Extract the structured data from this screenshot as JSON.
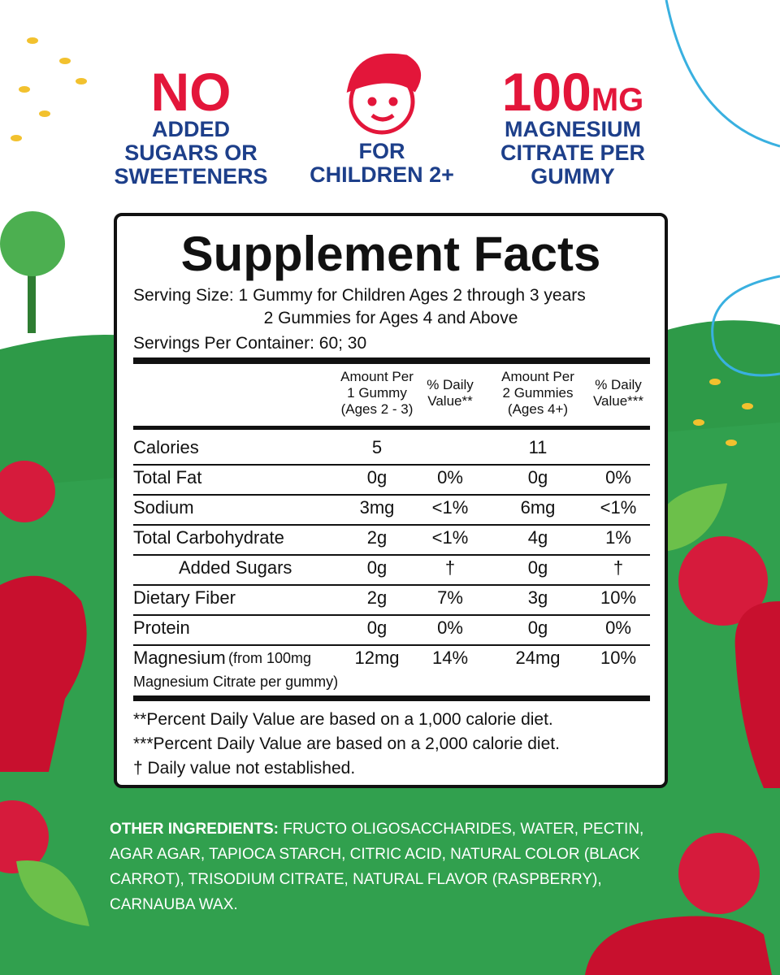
{
  "badges": [
    {
      "big": "NO",
      "lines": [
        "ADDED",
        "SUGARS OR",
        "SWEETENERS"
      ]
    },
    {
      "lines": [
        "FOR",
        "CHILDREN 2+"
      ]
    },
    {
      "big": "100",
      "unit": "MG",
      "lines": [
        "MAGNESIUM",
        "CITRATE PER",
        "GUMMY"
      ]
    }
  ],
  "facts": {
    "title": "Supplement Facts",
    "serving": [
      "Serving Size: 1 Gummy for Children Ages 2 through 3 years",
      "2 Gummies for Ages 4 and Above"
    ],
    "servings_per_container": "Servings Per Container: 60; 30",
    "columns": [
      [
        "Amount Per",
        "1 Gummy",
        "(Ages 2 - 3)"
      ],
      [
        "% Daily",
        "Value**"
      ],
      [
        "Amount Per",
        "2 Gummies",
        "(Ages 4+)"
      ],
      [
        "% Daily",
        "Value***"
      ]
    ],
    "rows": [
      {
        "label": "Calories",
        "values": [
          "5",
          null,
          "11",
          null
        ]
      },
      {
        "label": "Total Fat",
        "values": [
          "0g",
          "0%",
          "0g",
          "0%"
        ]
      },
      {
        "label": "Sodium",
        "values": [
          "3mg",
          "<1%",
          "6mg",
          "<1%"
        ]
      },
      {
        "label": "Total Carbohydrate",
        "values": [
          "2g",
          "<1%",
          "4g",
          "1%"
        ]
      },
      {
        "label": "Added Sugars",
        "indent": true,
        "values": [
          "0g",
          "†",
          "0g",
          "†"
        ]
      },
      {
        "label": "Dietary Fiber",
        "values": [
          "2g",
          "7%",
          "3g",
          "10%"
        ]
      },
      {
        "label": "Protein",
        "values": [
          "0g",
          "0%",
          "0g",
          "0%"
        ]
      },
      {
        "label": "Magnesium",
        "note": [
          "(from 100mg",
          "Magnesium Citrate per gummy)"
        ],
        "values": [
          "12mg",
          "14%",
          "24mg",
          "10%"
        ]
      }
    ],
    "footnotes": [
      "**Percent Daily Value are based on a 1,000 calorie diet.",
      "***Percent Daily Value  are based on a 2,000 calorie diet.",
      "† Daily value not established."
    ]
  },
  "other_ingredients": {
    "label": "OTHER INGREDIENTS:",
    "text": "FRUCTO OLIGOSACCHARIDES, WATER, PECTIN, AGAR AGAR, TAPIOCA STARCH, CITRIC ACID, NATURAL COLOR (BLACK CARROT), TRISODIUM CITRATE, NATURAL FLAVOR (RASPBERRY), CARNAUBA WAX."
  }
}
